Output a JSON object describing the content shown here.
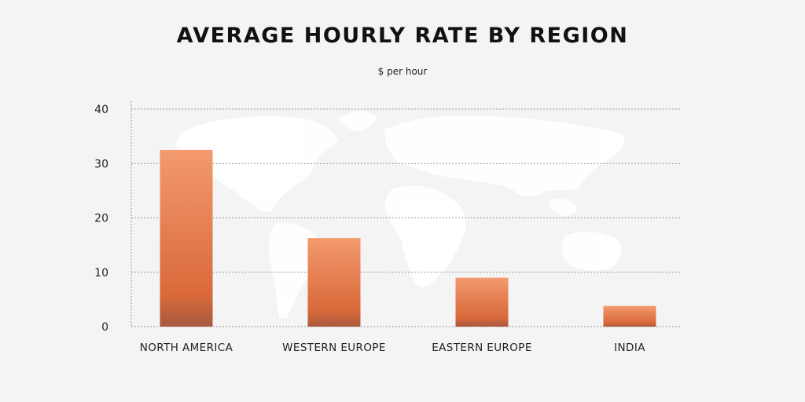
{
  "chart_data": {
    "type": "bar",
    "title": "AVERAGE HOURLY RATE BY REGION",
    "subtitle": "$ per hour",
    "categories": [
      "NORTH AMERICA",
      "WESTERN EUROPE",
      "EASTERN EUROPE",
      "INDIA"
    ],
    "values": [
      32.5,
      16.3,
      9,
      3.8
    ],
    "yticks": [
      "0",
      "10",
      "20",
      "30",
      "40"
    ],
    "ylim": [
      0,
      40
    ],
    "grid": true,
    "xlabel": "",
    "ylabel": ""
  },
  "colors": {
    "background": "#f4f4f4",
    "bar_top": "#f39a6e",
    "bar_bottom": "#d9693a",
    "bar_base": "#a9593f",
    "grid": "#9a9a9a",
    "map": "#ffffff"
  }
}
